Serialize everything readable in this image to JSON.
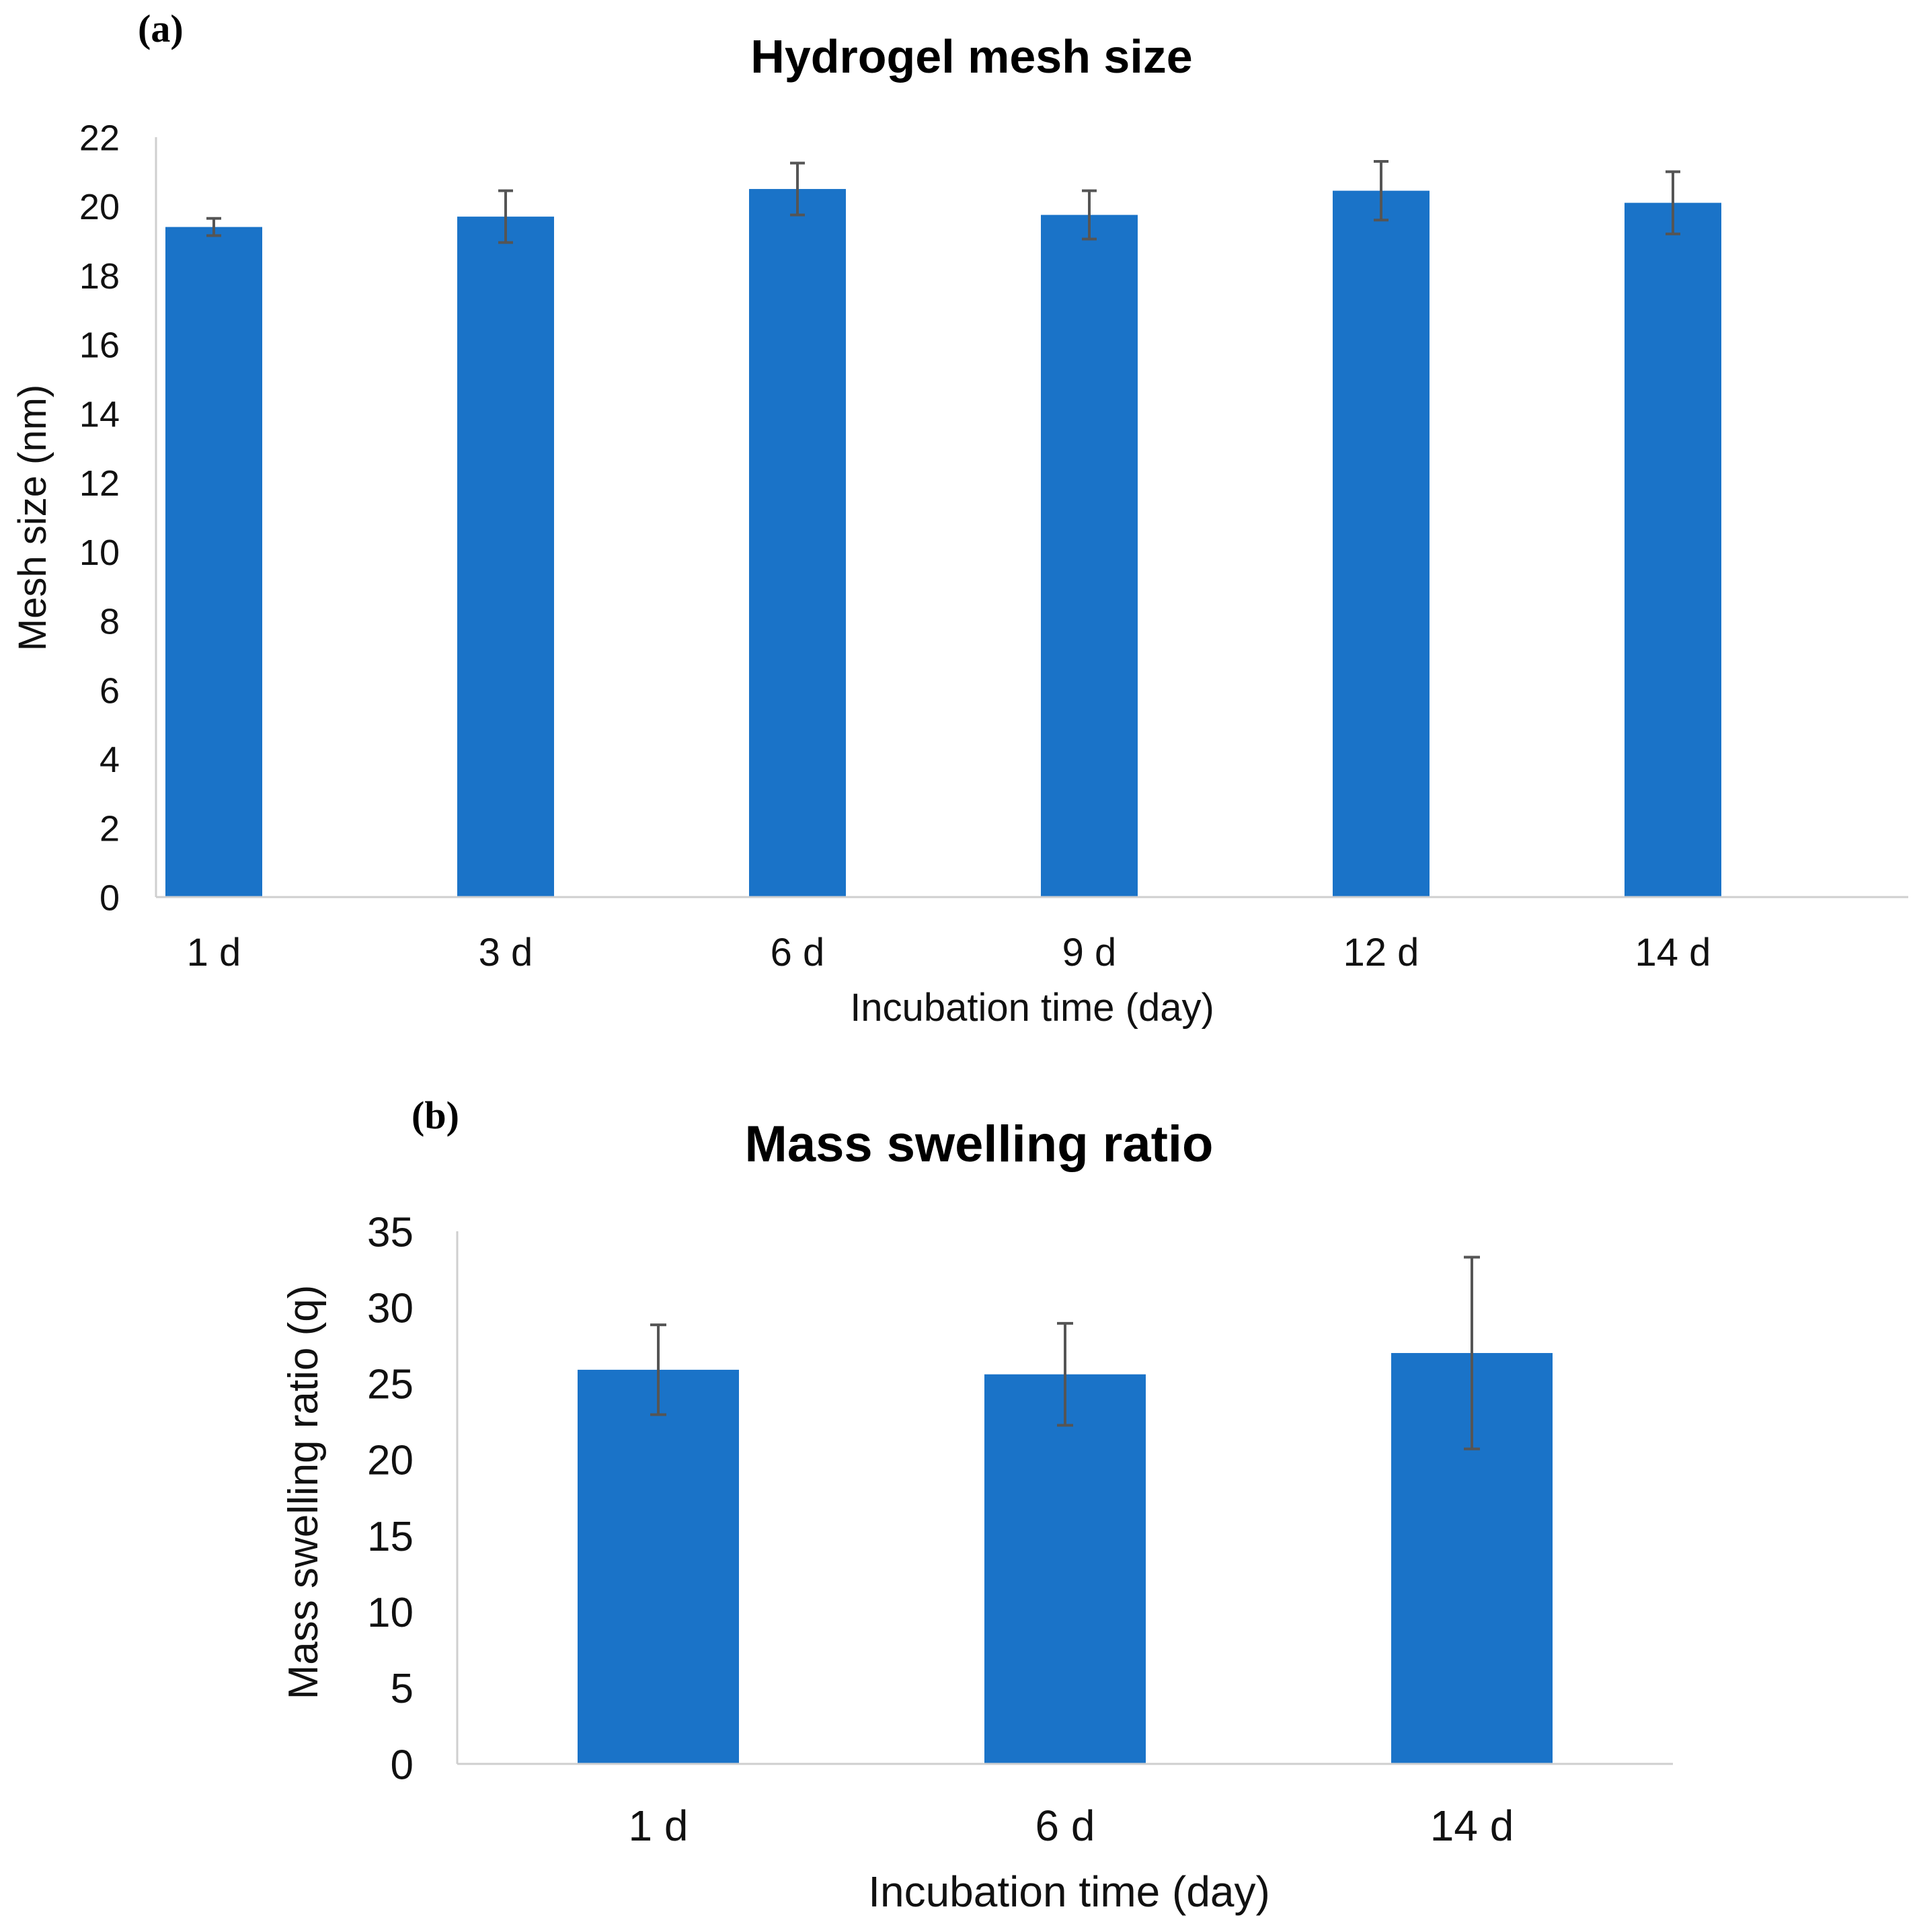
{
  "chart_data": [
    {
      "type": "bar",
      "panel_label": "(a)",
      "title": "Hydrogel mesh size",
      "xlabel": "Incubation time (day)",
      "ylabel": "Mesh size (nm)",
      "categories": [
        "1 d",
        "3 d",
        "6 d",
        "9 d",
        "12 d",
        "14 d"
      ],
      "values": [
        19.4,
        19.7,
        20.5,
        19.75,
        20.45,
        20.1
      ],
      "errors": [
        0.25,
        0.75,
        0.75,
        0.7,
        0.85,
        0.9
      ],
      "ylim": [
        0,
        22
      ],
      "yticks": [
        0,
        2,
        4,
        6,
        8,
        10,
        12,
        14,
        16,
        18,
        20,
        22
      ],
      "color": "#1a73c8",
      "error_color": "#555555",
      "grid": false
    },
    {
      "type": "bar",
      "panel_label": "(b)",
      "title": "Mass swelling ratio",
      "xlabel": "Incubation time (day)",
      "ylabel": "Mass swelling ratio (q)",
      "categories": [
        "1 d",
        "6 d",
        "14 d"
      ],
      "values": [
        25.9,
        25.6,
        27.0
      ],
      "errors": [
        2.95,
        3.35,
        6.3
      ],
      "ylim": [
        0,
        35
      ],
      "yticks": [
        0,
        5,
        10,
        15,
        20,
        25,
        30,
        35
      ],
      "color": "#1a73c8",
      "error_color": "#555555",
      "grid": false
    }
  ]
}
